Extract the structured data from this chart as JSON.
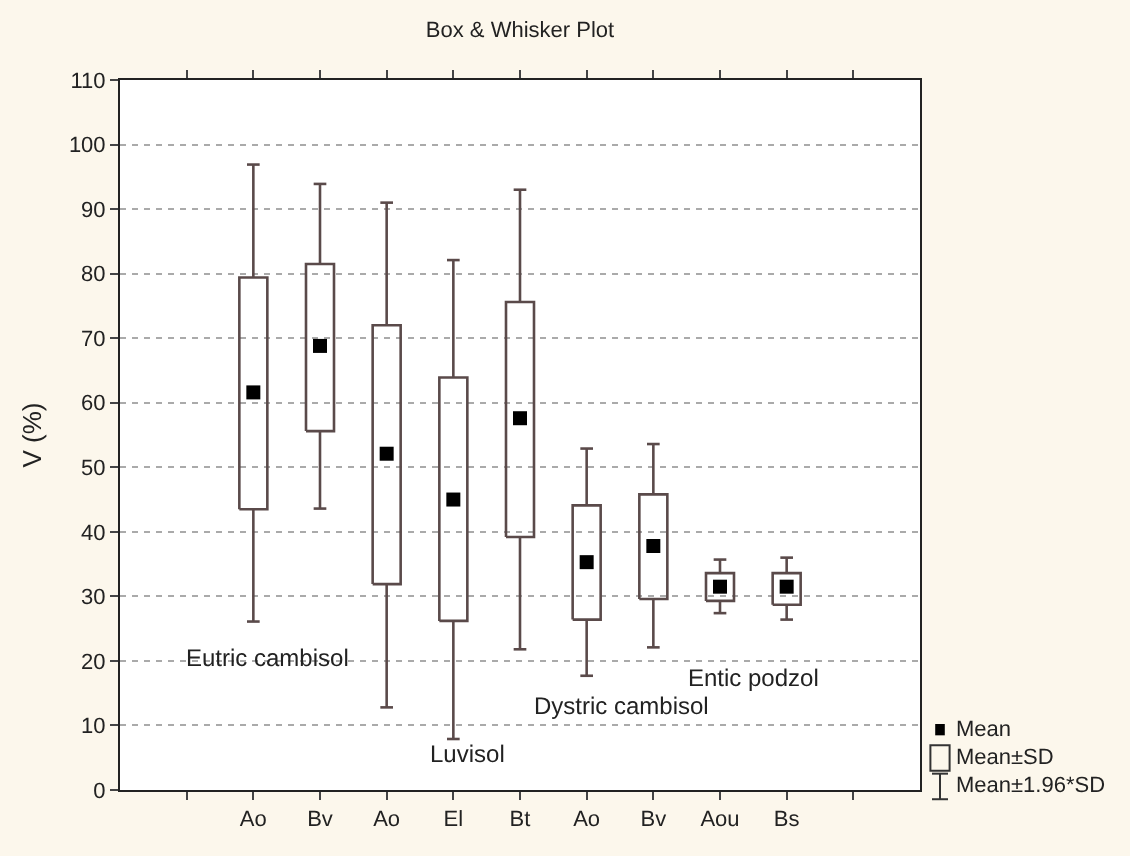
{
  "chart_data": {
    "type": "box",
    "title": "Box & Whisker Plot",
    "ylabel": "V (%)",
    "categories": [
      null,
      "Ao",
      "Bv",
      "Ao",
      "El",
      "Bt",
      "Ao",
      "Bv",
      "Aou",
      "Bs",
      null
    ],
    "boxes": [
      null,
      {
        "low": 26.1,
        "q1": 43.5,
        "mean": 61.6,
        "q3": 79.4,
        "high": 96.9
      },
      {
        "low": 43.6,
        "q1": 55.6,
        "mean": 68.8,
        "q3": 81.5,
        "high": 93.9
      },
      {
        "low": 12.8,
        "q1": 31.9,
        "mean": 52.1,
        "q3": 72.0,
        "high": 91.0
      },
      {
        "low": 7.9,
        "q1": 26.2,
        "mean": 45.0,
        "q3": 63.9,
        "high": 82.1
      },
      {
        "low": 21.8,
        "q1": 39.2,
        "mean": 57.6,
        "q3": 75.6,
        "high": 93.0
      },
      {
        "low": 17.7,
        "q1": 26.4,
        "mean": 35.3,
        "q3": 44.1,
        "high": 52.9
      },
      {
        "low": 22.1,
        "q1": 29.6,
        "mean": 37.8,
        "q3": 45.8,
        "high": 53.6
      },
      {
        "low": 27.4,
        "q1": 29.3,
        "mean": 31.5,
        "q3": 33.6,
        "high": 35.7
      },
      {
        "low": 26.4,
        "q1": 28.7,
        "mean": 31.5,
        "q3": 33.6,
        "high": 36.0
      },
      null
    ],
    "color": "#5a4a4a",
    "ylim": [
      0,
      110
    ],
    "yticks": [
      0,
      10,
      20,
      30,
      40,
      50,
      60,
      70,
      80,
      90,
      100,
      110
    ],
    "grid": "y",
    "marker": "square",
    "annotations": [
      "Eutric cambisol",
      "Luvisol",
      "Dystric cambisol",
      "Entic podzol",
      "Mean",
      "Mean±SD",
      "Mean±1.96*SD"
    ]
  }
}
